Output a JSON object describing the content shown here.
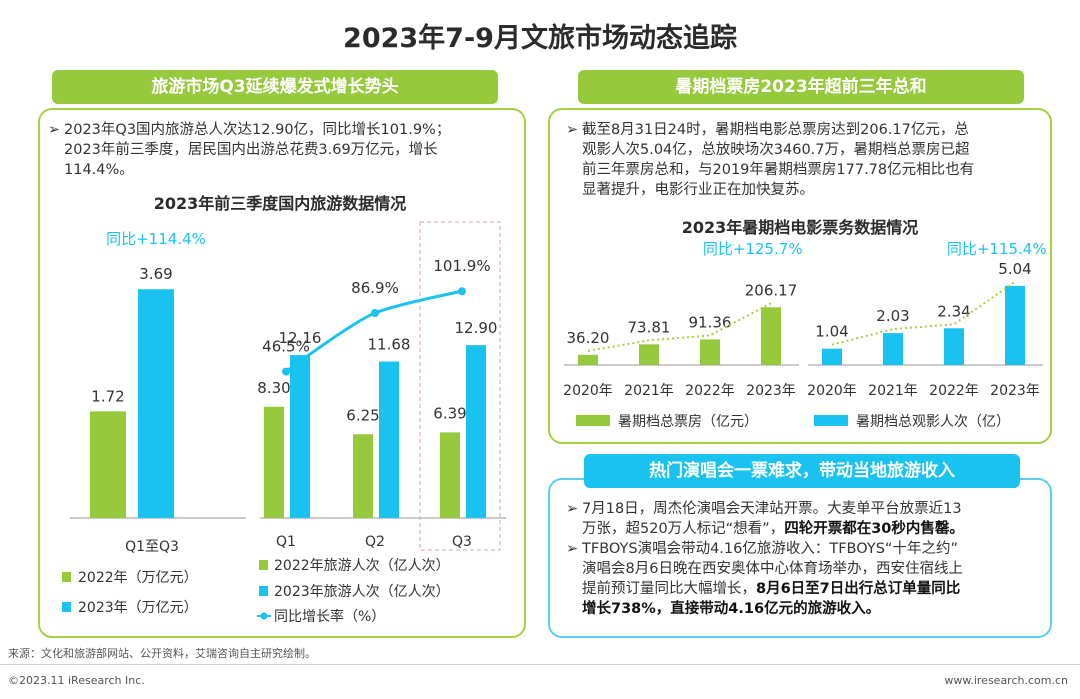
{
  "title": "2023年7-9月文旅市场动态追踪",
  "colors": {
    "green": "#97c93d",
    "cyan": "#1ac3ef",
    "line_dot": "#a6d142"
  },
  "left": {
    "banner": "旅游市场Q3延续爆发式增长势头",
    "bullet": {
      "line1": "2023年Q3国内旅游总人次达12.90亿，同比增长101.9%；",
      "line2": "2023年前三季度，居民国内出游总花费3.69万亿元，增长",
      "line3": "114.4%。"
    },
    "chart_title": "2023年前三季度国内旅游数据情况",
    "legend_a1": "2022年（万亿元）",
    "legend_a2": "2023年（万亿元）",
    "legend_b1": "2022年旅游人次（亿人次）",
    "legend_b2": "2023年旅游人次（亿人次）",
    "legend_b3": "同比增长率（%）"
  },
  "right": {
    "banner1": "暑期档票房2023年超前三年总和",
    "bullet1": {
      "line1": "截至8月31日24时，暑期档电影总票房达到206.17亿元，总",
      "line2": "观影人次5.04亿，总放映场次3460.7万，暑期档总票房已超",
      "line3": "前三年票房总和，与2019年暑期档票房177.78亿元相比也有",
      "line4": "显著提升，电影行业正在加快复苏。"
    },
    "chart_title": "2023年暑期档电影票务数据情况",
    "legend1": "暑期档总票房（亿元）",
    "legend2": "暑期档总观影人次（亿）",
    "banner2": "热门演唱会一票难求，带动当地旅游收入",
    "bullet2": {
      "a_line1": "7月18日，周杰伦演唱会天津站开票。大麦单平台放票近13",
      "a_line2_plain": "万张，超520万人标记“想看”，",
      "a_line2_bold": "四轮开票都在30秒内售罄。",
      "b_line1": "TFBOYS演唱会带动4.16亿旅游收入：TFBOYS“十年之约”",
      "b_line2": "演唱会8月6日晚在西安奥体中心体育场举办，西安住宿线上",
      "b_line3_plain": "提前预订量同比大幅增长，",
      "b_line3_bold": "8月6日至7日出行总订单量同比",
      "b_line4_bold": "增长738%，直接带动4.16亿元的旅游收入。"
    }
  },
  "chart_data": [
    {
      "type": "bar",
      "title": "2023年前三季度国内旅游数据情况",
      "categories": [
        "Q1至Q3"
      ],
      "series": [
        {
          "name": "2022年（万亿元）",
          "values": [
            1.72
          ]
        },
        {
          "name": "2023年（万亿元）",
          "values": [
            3.69
          ]
        }
      ],
      "annotation": "同比+114.4%"
    },
    {
      "type": "bar",
      "categories": [
        "Q1",
        "Q2",
        "Q3"
      ],
      "series": [
        {
          "name": "2022年旅游人次（亿人次）",
          "values": [
            8.3,
            6.25,
            6.39
          ]
        },
        {
          "name": "2023年旅游人次（亿人次）",
          "values": [
            12.16,
            11.68,
            12.9
          ]
        },
        {
          "name": "同比增长率（%）",
          "type": "line",
          "values": [
            46.5,
            86.9,
            101.9
          ],
          "labels": [
            "46.5%",
            "86.9%",
            "101.9%"
          ]
        }
      ],
      "highlight": "Q3"
    },
    {
      "type": "bar",
      "categories": [
        "2020年",
        "2021年",
        "2022年",
        "2023年"
      ],
      "series": [
        {
          "name": "暑期档总票房（亿元）",
          "values": [
            36.2,
            73.81,
            91.36,
            206.17
          ]
        }
      ],
      "annotation": "同比+125.7%",
      "trend_line": "dotted"
    },
    {
      "type": "bar",
      "categories": [
        "2020年",
        "2021年",
        "2022年",
        "2023年"
      ],
      "series": [
        {
          "name": "暑期档总观影人次（亿）",
          "values": [
            1.04,
            2.03,
            2.34,
            5.04
          ]
        }
      ],
      "annotation": "同比+115.4%",
      "trend_line": "dotted"
    }
  ],
  "footer": {
    "source": "来源：文化和旅游部网站、公开资料，艾瑞咨询自主研究绘制。",
    "copyright": "©2023.11 iResearch Inc.",
    "url": "www.iresearch.com.cn"
  }
}
